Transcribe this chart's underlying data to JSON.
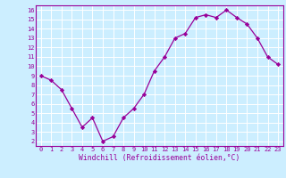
{
  "x": [
    0,
    1,
    2,
    3,
    4,
    5,
    6,
    7,
    8,
    9,
    10,
    11,
    12,
    13,
    14,
    15,
    16,
    17,
    18,
    19,
    20,
    21,
    22,
    23
  ],
  "y": [
    9.0,
    8.5,
    7.5,
    5.5,
    3.5,
    4.5,
    2.0,
    2.5,
    4.5,
    5.5,
    7.0,
    9.5,
    11.0,
    13.0,
    13.5,
    15.2,
    15.5,
    15.2,
    16.0,
    15.2,
    14.5,
    13.0,
    11.0,
    10.2
  ],
  "xlim": [
    -0.5,
    23.5
  ],
  "ylim": [
    1.5,
    16.5
  ],
  "yticks": [
    2,
    3,
    4,
    5,
    6,
    7,
    8,
    9,
    10,
    11,
    12,
    13,
    14,
    15,
    16
  ],
  "xtick_labels": [
    "0",
    "1",
    "2",
    "3",
    "4",
    "5",
    "6",
    "7",
    "8",
    "9",
    "10",
    "11",
    "12",
    "13",
    "14",
    "15",
    "16",
    "17",
    "18",
    "19",
    "20",
    "21",
    "22",
    "23"
  ],
  "xlabel": "Windchill (Refroidissement éolien,°C)",
  "line_color": "#990099",
  "marker": "D",
  "marker_size": 2.2,
  "bg_color": "#cceeff",
  "grid_color": "#ffffff",
  "tick_label_color": "#990099",
  "axis_label_color": "#990099",
  "spine_color": "#990099",
  "tick_fontsize": 5.0,
  "xlabel_fontsize": 5.8
}
